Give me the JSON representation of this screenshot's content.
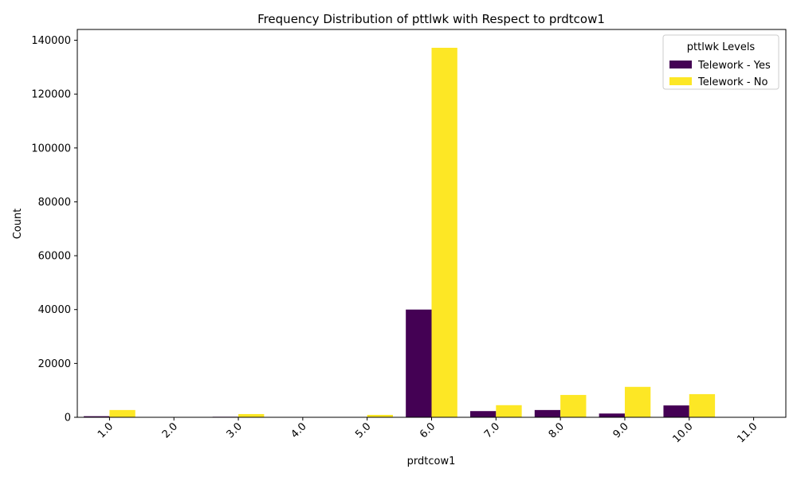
{
  "chart_data": {
    "type": "bar",
    "title": "Frequency Distribution of pttlwk with Respect to prdtcow1",
    "xlabel": "prdtcow1",
    "ylabel": "Count",
    "categories": [
      "1.0",
      "2.0",
      "3.0",
      "4.0",
      "5.0",
      "6.0",
      "7.0",
      "8.0",
      "9.0",
      "10.0",
      "11.0"
    ],
    "series": [
      {
        "name": "Telework - Yes",
        "color": "#440154",
        "values": [
          400,
          0,
          200,
          0,
          0,
          40000,
          2300,
          2700,
          1400,
          4400,
          0
        ]
      },
      {
        "name": "Telework - No",
        "color": "#fde725",
        "values": [
          2700,
          100,
          1200,
          100,
          900,
          137200,
          4500,
          8300,
          11300,
          8600,
          0
        ]
      }
    ],
    "ylim": [
      0,
      144000
    ],
    "yticks": [
      0,
      20000,
      40000,
      60000,
      80000,
      100000,
      120000,
      140000
    ],
    "legend": {
      "title": "pttlwk Levels",
      "position": "top-right"
    },
    "grid": false
  }
}
